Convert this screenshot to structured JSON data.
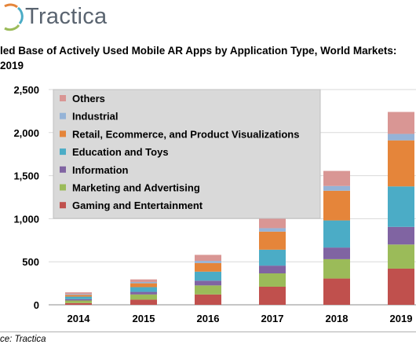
{
  "header": {
    "logo_text": "Tractica",
    "title_line1": "led Base of Actively Used Mobile AR Apps by Application Type, World Markets:",
    "title_line2": "2019"
  },
  "footer": {
    "source": "ce: Tractica"
  },
  "colors": {
    "Gaming and Entertainment": "#c0504d",
    "Marketing and Advertising": "#9bbb59",
    "Information": "#8064a2",
    "Education and Toys": "#4bacc6",
    "Retail, Ecommerce, and Product Visualizations": "#e5853a",
    "Industrial": "#95b3d7",
    "Others": "#d99694"
  },
  "chart_data": {
    "type": "bar",
    "stacked": true,
    "categories": [
      "2014",
      "2015",
      "2016",
      "2017",
      "2018",
      "2019"
    ],
    "ylim": [
      0,
      2500
    ],
    "yticks": [
      0,
      500,
      1000,
      1500,
      2000,
      2500
    ],
    "ytick_labels": [
      "0",
      "500",
      "1,000",
      "1,500",
      "2,000",
      "2,500"
    ],
    "grid": true,
    "legend_position": "top-left",
    "series": [
      {
        "name": "Gaming and Entertainment",
        "values": [
          20,
          60,
          120,
          210,
          305,
          420
        ]
      },
      {
        "name": "Marketing and Advertising",
        "values": [
          30,
          60,
          105,
          155,
          225,
          280
        ]
      },
      {
        "name": "Information",
        "values": [
          15,
          30,
          55,
          90,
          135,
          205
        ]
      },
      {
        "name": "Education and Toys",
        "values": [
          30,
          55,
          105,
          185,
          315,
          470
        ]
      },
      {
        "name": "Retail, Ecommerce, and Product Visualizations",
        "values": [
          20,
          45,
          100,
          210,
          345,
          535
        ]
      },
      {
        "name": "Industrial",
        "values": [
          10,
          15,
          25,
          40,
          55,
          75
        ]
      },
      {
        "name": "Others",
        "values": [
          20,
          30,
          70,
          110,
          175,
          255
        ]
      }
    ],
    "legend_order": [
      "Others",
      "Industrial",
      "Retail, Ecommerce, and Product Visualizations",
      "Education and Toys",
      "Information",
      "Marketing and Advertising",
      "Gaming and Entertainment"
    ]
  }
}
